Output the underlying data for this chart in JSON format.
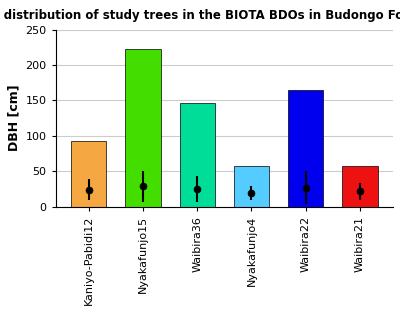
{
  "title": "DBH distribution of study trees in the BIOTA BDOs in Budongo Forest",
  "ylabel": "DBH [cm]",
  "categories": [
    "Kaniyo-Pabidi12",
    "Nyakafunjo15",
    "Waibira36",
    "Nyakafunjo4",
    "Waibira22",
    "Waibira21"
  ],
  "bar_heights": [
    93,
    222,
    147,
    57,
    165,
    58
  ],
  "bar_colors": [
    "#F5A742",
    "#44DD00",
    "#00DD99",
    "#55CCFF",
    "#0000EE",
    "#EE1111"
  ],
  "mean_values": [
    24,
    29,
    25,
    19,
    27,
    22
  ],
  "error_lower": [
    15,
    22,
    18,
    10,
    23,
    12
  ],
  "error_upper": [
    15,
    22,
    18,
    10,
    23,
    12
  ],
  "ylim": [
    0,
    250
  ],
  "yticks": [
    0,
    50,
    100,
    150,
    200,
    250
  ],
  "title_fontsize": 8.5,
  "axis_label_fontsize": 9,
  "tick_fontsize": 8,
  "background_color": "#ffffff",
  "grid_color": "#cccccc"
}
